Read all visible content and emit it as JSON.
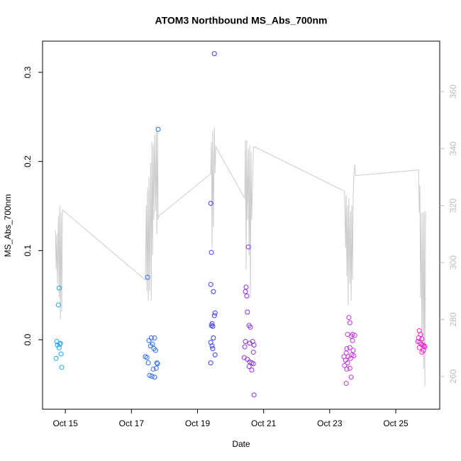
{
  "chart_data": {
    "type": "scatter",
    "title": "ATOM3 Northbound MS_Abs_700nm",
    "x_label": "Date",
    "y_label": "MS_Abs_700nm",
    "xlim": [
      14.31,
      26.33
    ],
    "xticks": [
      {
        "value": 15,
        "label": "Oct 15"
      },
      {
        "value": 17,
        "label": "Oct 17"
      },
      {
        "value": 19,
        "label": "Oct 19"
      },
      {
        "value": 21,
        "label": "Oct 21"
      },
      {
        "value": 23,
        "label": "Oct 23"
      },
      {
        "value": 25,
        "label": "Oct 25"
      }
    ],
    "ylim": [
      -0.078,
      0.335
    ],
    "yticks": [
      {
        "value": 0,
        "label": "0.0"
      },
      0.1,
      0.2,
      0.3
    ],
    "y2lim": [
      248.5,
      377.7
    ],
    "y2ticks": [
      260,
      280,
      300,
      320,
      340,
      360
    ],
    "y2_color": "#bbbbbb",
    "series": [
      {
        "color": "#1aa7ec",
        "x": [
          14.81,
          14.79,
          14.74,
          14.76,
          14.81,
          14.85,
          14.72,
          14.87,
          14.89,
          14.83
        ],
        "values": [
          0.058,
          0.039,
          -0.002,
          -0.006,
          -0.009,
          -0.004,
          -0.021,
          -0.016,
          -0.031,
          -0.005
        ]
      },
      {
        "color": "#2b6ff0",
        "x": [
          17.49,
          17.81,
          17.42,
          17.47,
          17.53,
          17.6,
          17.7,
          17.58,
          17.64,
          17.68,
          17.55,
          17.62,
          17.7,
          17.75,
          17.79,
          17.51,
          17.66,
          17.73,
          17.77
        ],
        "values": [
          0.07,
          0.236,
          -0.019,
          -0.02,
          -0.001,
          0.002,
          0.002,
          -0.007,
          -0.005,
          -0.01,
          -0.04,
          -0.041,
          -0.042,
          -0.032,
          -0.027,
          -0.026,
          -0.033,
          -0.012,
          -0.026
        ]
      },
      {
        "color": "#3b3bf0",
        "x": [
          19.51,
          19.4,
          19.42,
          19.4,
          19.48,
          19.53,
          19.51,
          19.44,
          19.46,
          19.42,
          19.48,
          19.4,
          19.44,
          19.53,
          19.4,
          19.46
        ],
        "values": [
          0.321,
          0.153,
          0.098,
          0.062,
          0.054,
          0.03,
          0.027,
          0.018,
          0.015,
          0.016,
          0.002,
          -0.003,
          -0.007,
          -0.017,
          -0.026,
          -0.01
        ]
      },
      {
        "color": "#8b2ff0",
        "x": [
          20.54,
          20.47,
          20.45,
          20.49,
          20.51,
          20.56,
          20.6,
          20.45,
          20.67,
          20.58,
          20.71,
          20.43,
          20.69,
          20.41,
          20.51,
          20.58,
          20.64,
          20.69,
          20.56,
          20.64,
          20.71
        ],
        "values": [
          0.104,
          0.059,
          0.054,
          0.049,
          0.031,
          0.016,
          0.014,
          -0.002,
          -0.002,
          -0.004,
          -0.006,
          -0.008,
          -0.014,
          -0.02,
          -0.022,
          -0.025,
          -0.026,
          -0.027,
          -0.03,
          -0.034,
          -0.062
        ]
      },
      {
        "color": "#c52fe0",
        "x": [
          23.58,
          23.61,
          23.54,
          23.69,
          23.65,
          23.76,
          23.52,
          23.61,
          23.71,
          23.5,
          23.67,
          23.56,
          23.43,
          23.63,
          23.73,
          23.48,
          23.54,
          23.45,
          23.61,
          23.52,
          23.65,
          23.5,
          23.69
        ],
        "values": [
          0.025,
          0.019,
          0.006,
          0.006,
          0.004,
          0.005,
          -0.01,
          -0.009,
          -0.012,
          -0.015,
          -0.017,
          -0.019,
          -0.019,
          -0.021,
          -0.018,
          -0.023,
          -0.026,
          -0.029,
          -0.032,
          -0.033,
          -0.042,
          -0.049,
          -0.001
        ]
      },
      {
        "color": "#f01fd0",
        "x": [
          25.71,
          25.75,
          25.69,
          25.79,
          25.67,
          25.73,
          25.82,
          25.77,
          25.86,
          25.71,
          25.84,
          25.88,
          25.79
        ],
        "values": [
          0.01,
          0.006,
          0.002,
          0.001,
          -0.002,
          -0.003,
          -0.006,
          -0.005,
          -0.007,
          -0.009,
          -0.012,
          -0.008,
          -0.014
        ]
      }
    ],
    "line": {
      "color": "#cccccc",
      "axis": "y2",
      "x": [
        14.7,
        14.72,
        14.74,
        14.76,
        14.79,
        14.81,
        14.83,
        14.85,
        14.87,
        14.89,
        14.91,
        17.42,
        17.45,
        17.47,
        17.49,
        17.51,
        17.53,
        17.55,
        17.58,
        17.6,
        17.62,
        17.64,
        17.66,
        17.68,
        17.7,
        17.73,
        17.75,
        17.77,
        17.79,
        17.81,
        17.83,
        19.4,
        19.42,
        19.44,
        19.46,
        19.48,
        19.51,
        19.53,
        19.55,
        20.43,
        20.45,
        20.47,
        20.49,
        20.51,
        20.54,
        20.56,
        20.58,
        20.6,
        20.62,
        20.64,
        20.69,
        20.71,
        23.45,
        23.48,
        23.5,
        23.52,
        23.54,
        23.56,
        23.58,
        23.61,
        23.63,
        23.65,
        23.67,
        23.69,
        23.71,
        23.73,
        23.76,
        23.78,
        25.69,
        25.71,
        25.73,
        25.75,
        25.77,
        25.79,
        25.82,
        25.84,
        25.86,
        25.88,
        25.9
      ],
      "values": [
        311.3,
        297.6,
        310.0,
        292.6,
        316.3,
        287.6,
        320.0,
        280.2,
        317.5,
        282.7,
        318.5,
        293.9,
        320.0,
        290.1,
        326.2,
        286.6,
        330.0,
        290.1,
        335.0,
        286.6,
        342.4,
        302.6,
        341.2,
        315.0,
        344.9,
        318.0,
        347.9,
        310.0,
        346.2,
        315.0,
        316.3,
        331.2,
        342.4,
        305.1,
        346.2,
        312.5,
        347.4,
        331.2,
        340.7,
        322.5,
        342.9,
        297.6,
        342.9,
        315.0,
        339.9,
        302.6,
        341.2,
        287.6,
        338.7,
        315.0,
        340.4,
        340.7,
        325.0,
        305.1,
        323.7,
        295.1,
        320.0,
        285.1,
        322.5,
        292.6,
        318.0,
        286.6,
        320.0,
        293.9,
        322.5,
        330.0,
        334.5,
        330.5,
        332.5,
        317.5,
        327.0,
        287.6,
        317.5,
        270.2,
        317.5,
        262.7,
        318.0,
        256.5,
        318.0
      ]
    }
  }
}
